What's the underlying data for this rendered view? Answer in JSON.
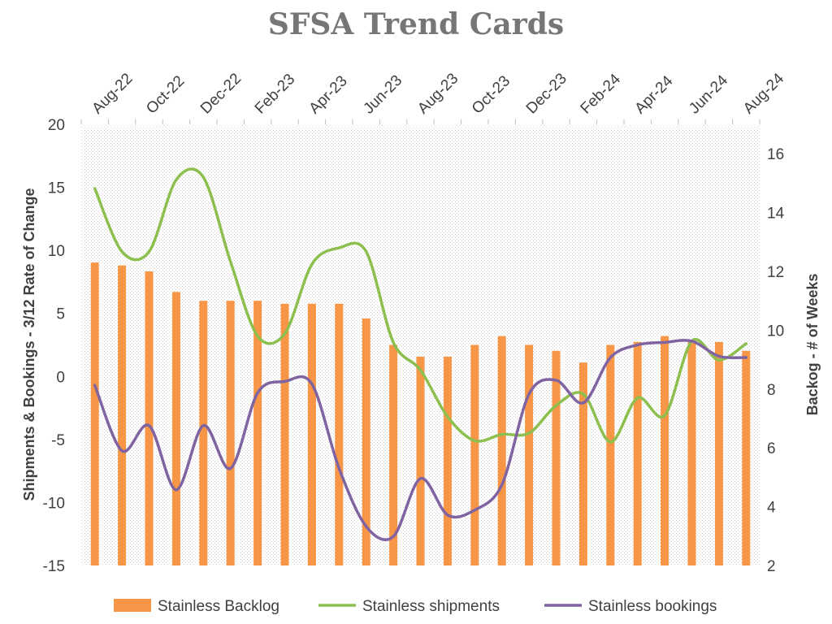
{
  "chart_data": {
    "type": "bar",
    "title": "SFSA Trend Cards",
    "x_tick_labels": [
      "Aug-22",
      "Oct-22",
      "Dec-22",
      "Feb-23",
      "Apr-23",
      "Jun-23",
      "Aug-23",
      "Oct-23",
      "Dec-23",
      "Feb-24",
      "Apr-24",
      "Jun-24",
      "Aug-24"
    ],
    "categories": [
      "Aug-22",
      "Sep-22",
      "Oct-22",
      "Nov-22",
      "Dec-22",
      "Jan-23",
      "Feb-23",
      "Mar-23",
      "Apr-23",
      "May-23",
      "Jun-23",
      "Jul-23",
      "Aug-23",
      "Sep-23",
      "Oct-23",
      "Nov-23",
      "Dec-23",
      "Jan-24",
      "Feb-24",
      "Mar-24",
      "Apr-24",
      "May-24",
      "Jun-24",
      "Jul-24",
      "Aug-24"
    ],
    "y_left": {
      "label": "Shipments & Bookings - 3/12  Rate of Change",
      "range": [
        -15,
        20
      ],
      "ticks": [
        -15,
        -10,
        -5,
        0,
        5,
        10,
        15,
        20
      ]
    },
    "y_right": {
      "label": "Backog - # of Weeks",
      "range": [
        2,
        17
      ],
      "ticks": [
        2,
        4,
        6,
        8,
        10,
        12,
        14,
        16
      ]
    },
    "grid": false,
    "legend_position": "bottom",
    "series": [
      {
        "name": "Stainless Backlog",
        "type": "bar",
        "axis": "right",
        "color": "#F79646",
        "values": [
          12.3,
          12.2,
          12.0,
          11.3,
          11.0,
          11.0,
          11.0,
          10.9,
          10.9,
          10.9,
          10.4,
          9.5,
          9.1,
          9.1,
          9.5,
          9.8,
          9.5,
          9.3,
          8.9,
          9.5,
          9.6,
          9.8,
          9.6,
          9.6,
          9.3
        ]
      },
      {
        "name": "Stainless shipments",
        "type": "line",
        "axis": "left",
        "color": "#8DBF4F",
        "values": [
          14.9,
          9.9,
          9.9,
          15.6,
          15.8,
          9.1,
          3.2,
          3.4,
          8.9,
          10.2,
          9.9,
          2.7,
          0.5,
          -3.2,
          -5.1,
          -4.6,
          -4.5,
          -2.3,
          -1.4,
          -5.2,
          -1.7,
          -3.1,
          2.8,
          1.3,
          2.6
        ]
      },
      {
        "name": "Stainless bookings",
        "type": "line",
        "axis": "left",
        "color": "#8064A2",
        "values": [
          -0.7,
          -5.9,
          -3.9,
          -9.0,
          -3.9,
          -7.3,
          -1.3,
          -0.4,
          -0.6,
          -7.3,
          -11.9,
          -12.7,
          -8.1,
          -11.0,
          -10.6,
          -8.6,
          -1.4,
          -0.3,
          -2.1,
          1.5,
          2.5,
          2.7,
          2.8,
          1.6,
          1.5
        ]
      }
    ]
  }
}
